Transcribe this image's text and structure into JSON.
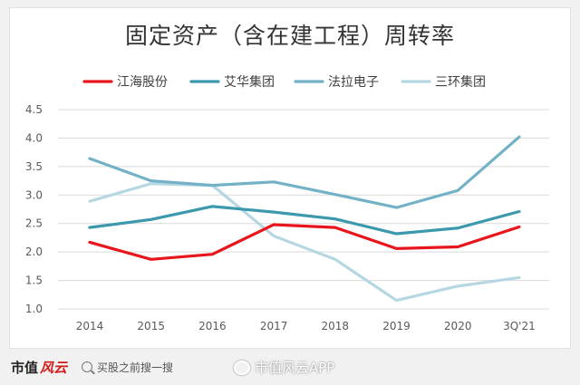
{
  "chart_data": {
    "type": "line",
    "title": "固定资产（含在建工程）周转率",
    "categories": [
      "2014",
      "2015",
      "2016",
      "2017",
      "2018",
      "2019",
      "2020",
      "3Q'21"
    ],
    "ylim": [
      1.0,
      4.5
    ],
    "yticks": [
      "1.0",
      "1.5",
      "2.0",
      "2.5",
      "3.0",
      "3.5",
      "4.0",
      "4.5"
    ],
    "grid": true,
    "legend_position": "top",
    "series": [
      {
        "name": "江海股份",
        "color": "#e8161c",
        "values": [
          2.17,
          1.87,
          1.96,
          2.48,
          2.43,
          2.06,
          2.09,
          2.44
        ]
      },
      {
        "name": "艾华集团",
        "color": "#3b98ad",
        "values": [
          2.43,
          2.57,
          2.8,
          2.7,
          2.58,
          2.32,
          2.42,
          2.71
        ]
      },
      {
        "name": "法拉电子",
        "color": "#73b1c7",
        "values": [
          3.64,
          3.25,
          3.17,
          3.23,
          3.01,
          2.78,
          3.08,
          4.02
        ]
      },
      {
        "name": "三环集团",
        "color": "#b6d6e2",
        "values": [
          2.89,
          3.2,
          3.17,
          2.28,
          1.87,
          1.15,
          1.4,
          1.55
        ]
      }
    ]
  },
  "footer": {
    "logo_text": "市值",
    "logo_mark": "风云",
    "search_text": "买股之前搜一搜",
    "weibo_text": "市值风云APP",
    "logo_color": "#d21a1a"
  }
}
